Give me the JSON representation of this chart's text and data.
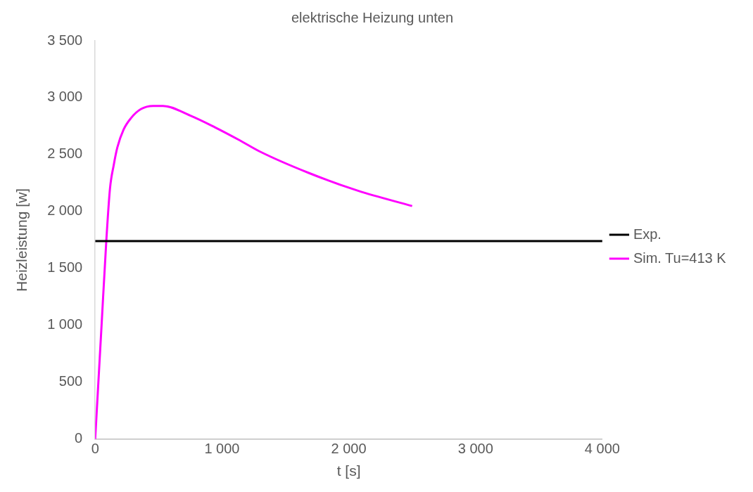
{
  "chart_data": {
    "type": "line",
    "title": "elektrische Heizung unten",
    "xlabel": "t [s]",
    "ylabel": "Heizleistung [w]",
    "xlim": [
      0,
      4000
    ],
    "xticks": [
      0,
      {
        "value": 1000,
        "label": "1 000"
      },
      {
        "value": 2000,
        "label": "2 000"
      },
      {
        "value": 3000,
        "label": "3 000"
      },
      {
        "value": 4000,
        "label": "4 000"
      }
    ],
    "ylim": [
      0,
      3500
    ],
    "yticks": [
      0,
      500,
      {
        "value": 1000,
        "label": "1 000"
      },
      {
        "value": 1500,
        "label": "1 500"
      },
      {
        "value": 2000,
        "label": "2 000"
      },
      {
        "value": 2500,
        "label": "2 500"
      },
      {
        "value": 3000,
        "label": "3 000"
      },
      {
        "value": 3500,
        "label": "3 500"
      }
    ],
    "grid": false,
    "legend": "right",
    "marker": "none",
    "line_style": "solid",
    "series": [
      {
        "name": "Exp.",
        "color": "#000000",
        "x": [
          0,
          4000
        ],
        "values": [
          1740,
          1740
        ]
      },
      {
        "name": "Sim. Tu=413 K",
        "color": "#ff00ff",
        "x": [
          0,
          49,
          88,
          117,
          146,
          175,
          224,
          282,
          360,
          457,
          535,
          749,
          944,
          1139,
          1295,
          1684,
          2073,
          2500
        ],
        "values": [
          0,
          972,
          1747,
          2204,
          2406,
          2563,
          2720,
          2820,
          2899,
          2928,
          2928,
          2843,
          2740,
          2626,
          2529,
          2339,
          2182,
          2048
        ]
      }
    ]
  }
}
